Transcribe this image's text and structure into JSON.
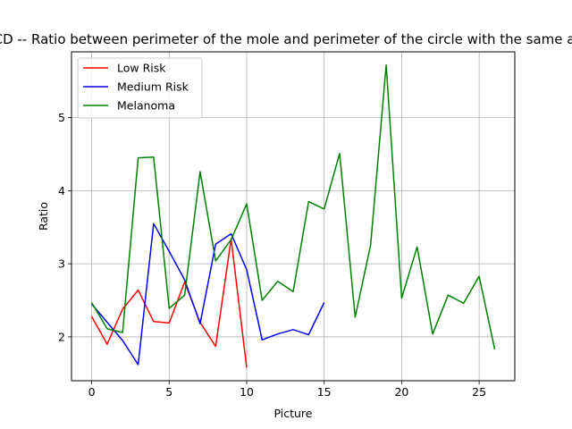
{
  "chart_data": {
    "type": "line",
    "title": "ABCD -- Ratio between perimeter of the mole and perimeter of the circle with the same area",
    "xlabel": "Picture",
    "ylabel": "Ratio",
    "xlim": [
      -1.3,
      27.3
    ],
    "ylim": [
      1.4,
      5.9
    ],
    "x_ticks": [
      0,
      5,
      10,
      15,
      20,
      25
    ],
    "y_ticks": [
      2,
      3,
      4,
      5
    ],
    "grid": true,
    "legend_position": "upper-left",
    "series": [
      {
        "name": "Low Risk",
        "color": "#ff0000",
        "x": [
          0,
          1,
          2,
          3,
          4,
          5,
          6,
          7,
          8,
          9,
          10
        ],
        "y": [
          2.28,
          1.9,
          2.38,
          2.64,
          2.21,
          2.19,
          2.75,
          2.2,
          1.87,
          3.34,
          1.58
        ]
      },
      {
        "name": "Medium Risk",
        "color": "#0000ff",
        "x": [
          0,
          1,
          2,
          3,
          4,
          5,
          6,
          7,
          8,
          9,
          10,
          11,
          12,
          13,
          14,
          15
        ],
        "y": [
          2.45,
          2.2,
          1.95,
          1.62,
          3.55,
          3.17,
          2.78,
          2.18,
          3.27,
          3.41,
          2.92,
          1.96,
          2.04,
          2.1,
          2.03,
          2.47
        ]
      },
      {
        "name": "Melanoma",
        "color": "#008000",
        "x": [
          0,
          1,
          2,
          3,
          4,
          5,
          6,
          7,
          8,
          9,
          10,
          11,
          12,
          13,
          14,
          15,
          16,
          17,
          18,
          19,
          20,
          21,
          22,
          23,
          24,
          25,
          26
        ],
        "y": [
          2.47,
          2.11,
          2.06,
          4.45,
          4.46,
          2.39,
          2.57,
          4.26,
          3.04,
          3.33,
          3.82,
          2.5,
          2.76,
          2.62,
          3.85,
          3.75,
          4.51,
          2.27,
          3.26,
          5.72,
          2.53,
          3.23,
          2.04,
          2.57,
          2.46,
          2.83,
          1.83
        ]
      }
    ]
  }
}
